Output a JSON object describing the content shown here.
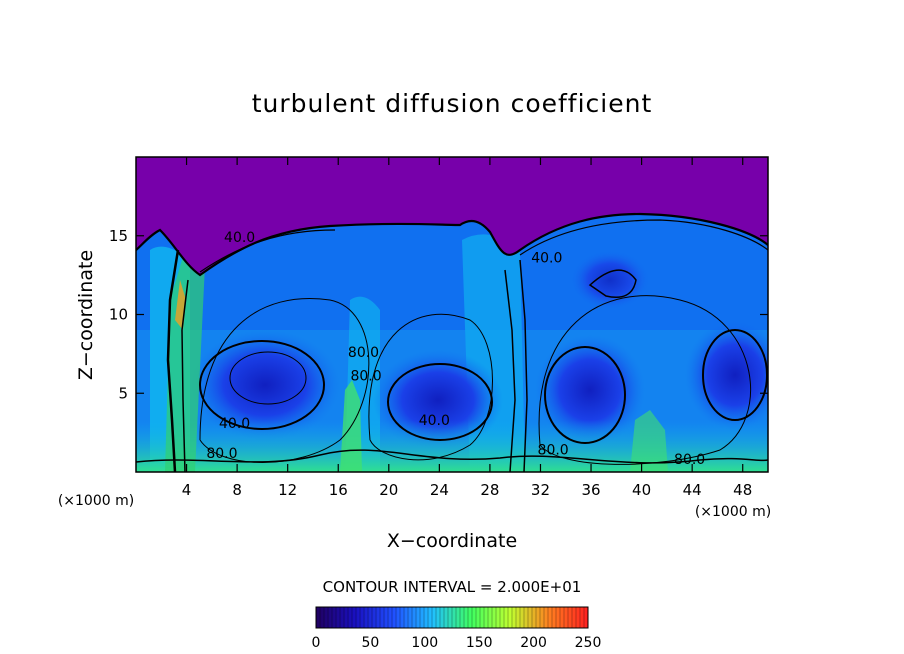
{
  "chart_data": {
    "type": "heatmap",
    "title": "turbulent diffusion coefficient",
    "xlabel": "X−coordinate",
    "ylabel": "Z−coordinate",
    "x_unit_left": "(×1000 m)",
    "x_unit_right": "(×1000 m)",
    "xlim": [
      0,
      50
    ],
    "ylim": [
      0,
      20
    ],
    "x_ticks": [
      4,
      8,
      12,
      16,
      20,
      24,
      28,
      32,
      36,
      40,
      44,
      48
    ],
    "y_ticks": [
      5,
      10,
      15
    ],
    "contour_interval_text": "CONTOUR INTERVAL = 2.000E+01",
    "contour_labels": [
      {
        "text": "80.0",
        "x": 6.8,
        "z": 0.9
      },
      {
        "text": "40.0",
        "x": 7.8,
        "z": 2.8
      },
      {
        "text": "80.0",
        "x": 18.2,
        "z": 5.8
      },
      {
        "text": "40.0",
        "x": 23.6,
        "z": 3.0
      },
      {
        "text": "80.0",
        "x": 18.0,
        "z": 7.3
      },
      {
        "text": "80.0",
        "x": 33.0,
        "z": 1.1
      },
      {
        "text": "40.0",
        "x": 8.2,
        "z": 14.6
      },
      {
        "text": "40.0",
        "x": 32.5,
        "z": 13.3
      },
      {
        "text": "80.0",
        "x": 43.8,
        "z": 0.5
      }
    ],
    "colorbar": {
      "min": 0,
      "max": 250,
      "ticks": [
        0,
        50,
        100,
        150,
        200,
        250
      ],
      "colors": [
        "#200060",
        "#1a10c0",
        "#2050ff",
        "#20c0ff",
        "#40ff60",
        "#c0ff30",
        "#ff8020",
        "#ff2020"
      ]
    },
    "field_colors": {
      "top_layer": "#7700aa",
      "low": "#1a20d0",
      "mid": "#1070f0",
      "high": "#10c0f0",
      "very_high": "#30e070"
    }
  }
}
